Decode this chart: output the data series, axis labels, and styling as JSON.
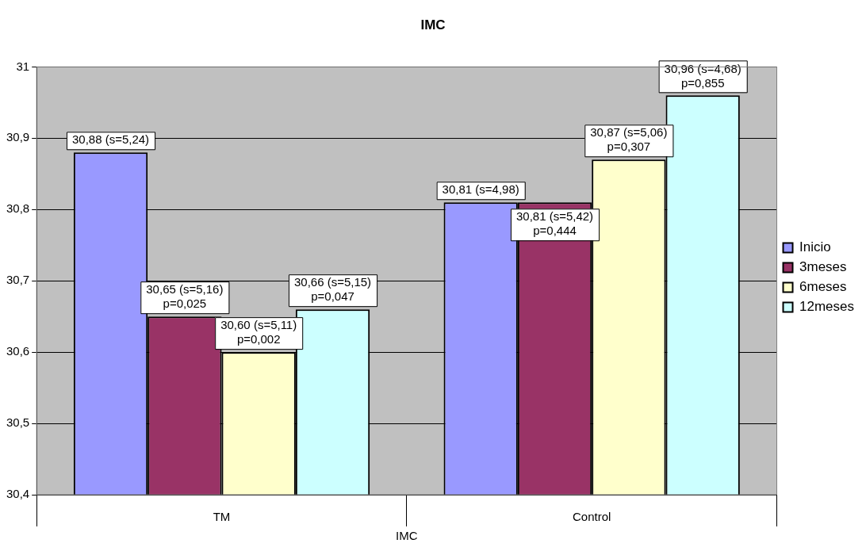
{
  "chart_data": {
    "type": "bar",
    "title": "IMC",
    "xlabel": "IMC",
    "categories": [
      "TM",
      "Control"
    ],
    "series": [
      {
        "name": "Inicio",
        "color": "#9999ff",
        "values": [
          30.88,
          30.81
        ],
        "value_labels": [
          "30,88 (s=5,24)",
          "30,81 (s=4,98)"
        ]
      },
      {
        "name": "3meses",
        "color": "#993366",
        "values": [
          30.65,
          30.81
        ],
        "value_labels": [
          "30,65 (s=5,16)\np=0,025",
          "30,81 (s=5,42)\np=0,444"
        ]
      },
      {
        "name": "6meses",
        "color": "#ffffcc",
        "values": [
          30.6,
          30.87
        ],
        "value_labels": [
          "30,60 (s=5,11)\np=0,002",
          "30,87 (s=5,06)\np=0,307"
        ]
      },
      {
        "name": "12meses",
        "color": "#ccffff",
        "values": [
          30.66,
          30.96
        ],
        "value_labels": [
          "30,66 (s=5,15)\np=0,047",
          "30,96 (s=4,68)\np=0,855"
        ]
      }
    ],
    "ylim": [
      30.4,
      31
    ],
    "yticks": [
      {
        "value": 30.4,
        "label": "30,4"
      },
      {
        "value": 30.5,
        "label": "30,5"
      },
      {
        "value": 30.6,
        "label": "30,6"
      },
      {
        "value": 30.7,
        "label": "30,7"
      },
      {
        "value": 30.8,
        "label": "30,8"
      },
      {
        "value": 30.9,
        "label": "30,9"
      },
      {
        "value": 31,
        "label": "31"
      }
    ],
    "grid": "y",
    "legend": "right"
  }
}
